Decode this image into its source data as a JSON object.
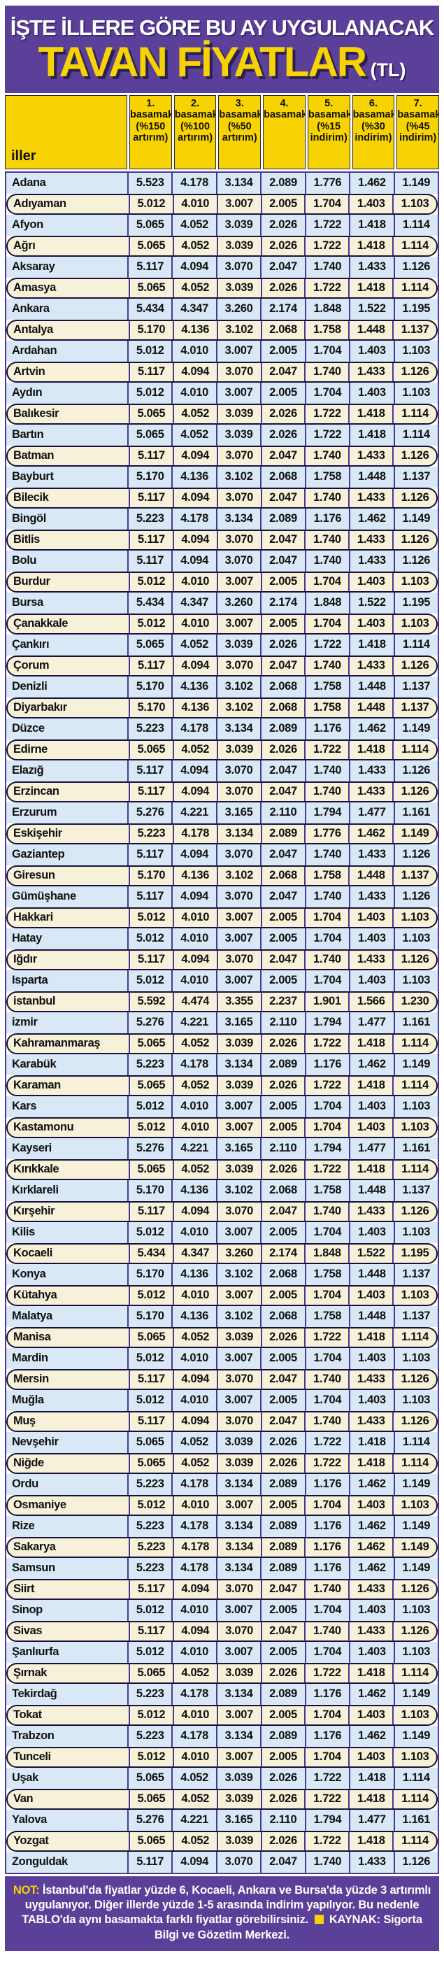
{
  "header": {
    "kicker": "İŞTE İLLERE GÖRE BU AY UYGULANACAK",
    "title": "TAVAN FİYATLAR",
    "title_suffix": "(TL)"
  },
  "colors": {
    "panel_purple": "#5a4098",
    "header_yellow": "#f8d303",
    "row_blue": "#d9e8f6",
    "row_cream": "#f6f1d8",
    "grid_line_purple": "#4b3794",
    "pill_outline": "#18123a",
    "title_yellow": "#f8d303",
    "text_black": "#111111",
    "text_white": "#ffffff"
  },
  "footnote": {
    "label": "NOT:",
    "text": "İstanbul'da fiyatlar yüzde 6, Kocaeli, Ankara ve Bursa'da yüzde 3 artırımlı uygulanıyor. Diğer illerde yüzde 1-5 arasında indirim yapılıyor. Bu nedenle TABLO'da aynı basamakta farklı fiyatlar görebilirsiniz.",
    "source": "KAYNAK: Sigorta Bilgi ve Gözetim Merkezi."
  },
  "chart_data": {
    "type": "table",
    "title": "İŞTE İLLERE GÖRE BU AY UYGULANACAK TAVAN FİYATLAR (TL)",
    "row_header": "iller",
    "columns": [
      {
        "label": "1.\nbasamak\n(%150\nartırım)"
      },
      {
        "label": "2.\nbasamak\n(%100\nartırım)"
      },
      {
        "label": "3.\nbasamak\n(%50\nartırım)"
      },
      {
        "label": "4.\nbasamak"
      },
      {
        "label": "5.\nbasamak\n(%15\nindirim)"
      },
      {
        "label": "6.\nbasamak\n(%30\nindirim)"
      },
      {
        "label": "7.\nbasamak\n(%45\nindirim)"
      }
    ],
    "rows": [
      {
        "il": "Adana",
        "values": [
          "5.523",
          "4.178",
          "3.134",
          "2.089",
          "1.776",
          "1.462",
          "1.149"
        ]
      },
      {
        "il": "Adıyaman",
        "values": [
          "5.012",
          "4.010",
          "3.007",
          "2.005",
          "1.704",
          "1.403",
          "1.103"
        ]
      },
      {
        "il": "Afyon",
        "values": [
          "5.065",
          "4.052",
          "3.039",
          "2.026",
          "1.722",
          "1.418",
          "1.114"
        ]
      },
      {
        "il": "Ağrı",
        "values": [
          "5.065",
          "4.052",
          "3.039",
          "2.026",
          "1.722",
          "1.418",
          "1.114"
        ]
      },
      {
        "il": "Aksaray",
        "values": [
          "5.117",
          "4.094",
          "3.070",
          "2.047",
          "1.740",
          "1.433",
          "1.126"
        ]
      },
      {
        "il": "Amasya",
        "values": [
          "5.065",
          "4.052",
          "3.039",
          "2.026",
          "1.722",
          "1.418",
          "1.114"
        ]
      },
      {
        "il": "Ankara",
        "values": [
          "5.434",
          "4.347",
          "3.260",
          "2.174",
          "1.848",
          "1.522",
          "1.195"
        ]
      },
      {
        "il": "Antalya",
        "values": [
          "5.170",
          "4.136",
          "3.102",
          "2.068",
          "1.758",
          "1.448",
          "1.137"
        ]
      },
      {
        "il": "Ardahan",
        "values": [
          "5.012",
          "4.010",
          "3.007",
          "2.005",
          "1.704",
          "1.403",
          "1.103"
        ]
      },
      {
        "il": "Artvin",
        "values": [
          "5.117",
          "4.094",
          "3.070",
          "2.047",
          "1.740",
          "1.433",
          "1.126"
        ]
      },
      {
        "il": "Aydın",
        "values": [
          "5.012",
          "4.010",
          "3.007",
          "2.005",
          "1.704",
          "1.403",
          "1.103"
        ]
      },
      {
        "il": "Balıkesir",
        "values": [
          "5.065",
          "4.052",
          "3.039",
          "2.026",
          "1.722",
          "1.418",
          "1.114"
        ]
      },
      {
        "il": "Bartın",
        "values": [
          "5.065",
          "4.052",
          "3.039",
          "2.026",
          "1.722",
          "1.418",
          "1.114"
        ]
      },
      {
        "il": "Batman",
        "values": [
          "5.117",
          "4.094",
          "3.070",
          "2.047",
          "1.740",
          "1.433",
          "1.126"
        ]
      },
      {
        "il": "Bayburt",
        "values": [
          "5.170",
          "4.136",
          "3.102",
          "2.068",
          "1.758",
          "1.448",
          "1.137"
        ]
      },
      {
        "il": "Bilecik",
        "values": [
          "5.117",
          "4.094",
          "3.070",
          "2.047",
          "1.740",
          "1.433",
          "1.126"
        ]
      },
      {
        "il": "Bingöl",
        "values": [
          "5.223",
          "4.178",
          "3.134",
          "2.089",
          "1.176",
          "1.462",
          "1.149"
        ]
      },
      {
        "il": "Bitlis",
        "values": [
          "5.117",
          "4.094",
          "3.070",
          "2.047",
          "1.740",
          "1.433",
          "1.126"
        ]
      },
      {
        "il": "Bolu",
        "values": [
          "5.117",
          "4.094",
          "3.070",
          "2.047",
          "1.740",
          "1.433",
          "1.126"
        ]
      },
      {
        "il": "Burdur",
        "values": [
          "5.012",
          "4.010",
          "3.007",
          "2.005",
          "1.704",
          "1.403",
          "1.103"
        ]
      },
      {
        "il": "Bursa",
        "values": [
          "5.434",
          "4.347",
          "3.260",
          "2.174",
          "1.848",
          "1.522",
          "1.195"
        ]
      },
      {
        "il": "Çanakkale",
        "values": [
          "5.012",
          "4.010",
          "3.007",
          "2.005",
          "1.704",
          "1.403",
          "1.103"
        ]
      },
      {
        "il": "Çankırı",
        "values": [
          "5.065",
          "4.052",
          "3.039",
          "2.026",
          "1.722",
          "1.418",
          "1.114"
        ]
      },
      {
        "il": "Çorum",
        "values": [
          "5.117",
          "4.094",
          "3.070",
          "2.047",
          "1.740",
          "1.433",
          "1.126"
        ]
      },
      {
        "il": "Denizli",
        "values": [
          "5.170",
          "4.136",
          "3.102",
          "2.068",
          "1.758",
          "1.448",
          "1.137"
        ]
      },
      {
        "il": "Diyarbakır",
        "values": [
          "5.170",
          "4.136",
          "3.102",
          "2.068",
          "1.758",
          "1.448",
          "1.137"
        ]
      },
      {
        "il": "Düzce",
        "values": [
          "5.223",
          "4.178",
          "3.134",
          "2.089",
          "1.176",
          "1.462",
          "1.149"
        ]
      },
      {
        "il": "Edirne",
        "values": [
          "5.065",
          "4.052",
          "3.039",
          "2.026",
          "1.722",
          "1.418",
          "1.114"
        ]
      },
      {
        "il": "Elazığ",
        "values": [
          "5.117",
          "4.094",
          "3.070",
          "2.047",
          "1.740",
          "1.433",
          "1.126"
        ]
      },
      {
        "il": "Erzincan",
        "values": [
          "5.117",
          "4.094",
          "3.070",
          "2.047",
          "1.740",
          "1.433",
          "1.126"
        ]
      },
      {
        "il": "Erzurum",
        "values": [
          "5.276",
          "4.221",
          "3.165",
          "2.110",
          "1.794",
          "1.477",
          "1.161"
        ]
      },
      {
        "il": "Eskişehir",
        "values": [
          "5.223",
          "4.178",
          "3.134",
          "2.089",
          "1.776",
          "1.462",
          "1.149"
        ]
      },
      {
        "il": "Gaziantep",
        "values": [
          "5.117",
          "4.094",
          "3.070",
          "2.047",
          "1.740",
          "1.433",
          "1.126"
        ]
      },
      {
        "il": "Giresun",
        "values": [
          "5.170",
          "4.136",
          "3.102",
          "2.068",
          "1.758",
          "1.448",
          "1.137"
        ]
      },
      {
        "il": "Gümüşhane",
        "values": [
          "5.117",
          "4.094",
          "3.070",
          "2.047",
          "1.740",
          "1.433",
          "1.126"
        ]
      },
      {
        "il": "Hakkari",
        "values": [
          "5.012",
          "4.010",
          "3.007",
          "2.005",
          "1.704",
          "1.403",
          "1.103"
        ]
      },
      {
        "il": "Hatay",
        "values": [
          "5.012",
          "4.010",
          "3.007",
          "2.005",
          "1.704",
          "1.403",
          "1.103"
        ]
      },
      {
        "il": "Iğdır",
        "values": [
          "5.117",
          "4.094",
          "3.070",
          "2.047",
          "1.740",
          "1.433",
          "1.126"
        ]
      },
      {
        "il": "Isparta",
        "values": [
          "5.012",
          "4.010",
          "3.007",
          "2.005",
          "1.704",
          "1.403",
          "1.103"
        ]
      },
      {
        "il": "istanbul",
        "values": [
          "5.592",
          "4.474",
          "3.355",
          "2.237",
          "1.901",
          "1.566",
          "1.230"
        ]
      },
      {
        "il": "izmir",
        "values": [
          "5.276",
          "4.221",
          "3.165",
          "2.110",
          "1.794",
          "1.477",
          "1.161"
        ]
      },
      {
        "il": "Kahramanmaraş",
        "values": [
          "5.065",
          "4.052",
          "3.039",
          "2.026",
          "1.722",
          "1.418",
          "1.114"
        ]
      },
      {
        "il": "Karabük",
        "values": [
          "5.223",
          "4.178",
          "3.134",
          "2.089",
          "1.176",
          "1.462",
          "1.149"
        ]
      },
      {
        "il": "Karaman",
        "values": [
          "5.065",
          "4.052",
          "3.039",
          "2.026",
          "1.722",
          "1.418",
          "1.114"
        ]
      },
      {
        "il": "Kars",
        "values": [
          "5.012",
          "4.010",
          "3.007",
          "2.005",
          "1.704",
          "1.403",
          "1.103"
        ]
      },
      {
        "il": "Kastamonu",
        "values": [
          "5.012",
          "4.010",
          "3.007",
          "2.005",
          "1.704",
          "1.403",
          "1.103"
        ]
      },
      {
        "il": "Kayseri",
        "values": [
          "5.276",
          "4.221",
          "3.165",
          "2.110",
          "1.794",
          "1.477",
          "1.161"
        ]
      },
      {
        "il": "Kırıkkale",
        "values": [
          "5.065",
          "4.052",
          "3.039",
          "2.026",
          "1.722",
          "1.418",
          "1.114"
        ]
      },
      {
        "il": "Kırklareli",
        "values": [
          "5.170",
          "4.136",
          "3.102",
          "2.068",
          "1.758",
          "1.448",
          "1.137"
        ]
      },
      {
        "il": "Kırşehir",
        "values": [
          "5.117",
          "4.094",
          "3.070",
          "2.047",
          "1.740",
          "1.433",
          "1.126"
        ]
      },
      {
        "il": "Kilis",
        "values": [
          "5.012",
          "4.010",
          "3.007",
          "2.005",
          "1.704",
          "1.403",
          "1.103"
        ]
      },
      {
        "il": "Kocaeli",
        "values": [
          "5.434",
          "4.347",
          "3.260",
          "2.174",
          "1.848",
          "1.522",
          "1.195"
        ]
      },
      {
        "il": "Konya",
        "values": [
          "5.170",
          "4.136",
          "3.102",
          "2.068",
          "1.758",
          "1.448",
          "1.137"
        ]
      },
      {
        "il": "Kütahya",
        "values": [
          "5.012",
          "4.010",
          "3.007",
          "2.005",
          "1.704",
          "1.403",
          "1.103"
        ]
      },
      {
        "il": "Malatya",
        "values": [
          "5.170",
          "4.136",
          "3.102",
          "2.068",
          "1.758",
          "1.448",
          "1.137"
        ]
      },
      {
        "il": "Manisa",
        "values": [
          "5.065",
          "4.052",
          "3.039",
          "2.026",
          "1.722",
          "1.418",
          "1.114"
        ]
      },
      {
        "il": "Mardin",
        "values": [
          "5.012",
          "4.010",
          "3.007",
          "2.005",
          "1.704",
          "1.403",
          "1.103"
        ]
      },
      {
        "il": "Mersin",
        "values": [
          "5.117",
          "4.094",
          "3.070",
          "2.047",
          "1.740",
          "1.433",
          "1.126"
        ]
      },
      {
        "il": "Muğla",
        "values": [
          "5.012",
          "4.010",
          "3.007",
          "2.005",
          "1.704",
          "1.403",
          "1.103"
        ]
      },
      {
        "il": "Muş",
        "values": [
          "5.117",
          "4.094",
          "3.070",
          "2.047",
          "1.740",
          "1.433",
          "1.126"
        ]
      },
      {
        "il": "Nevşehir",
        "values": [
          "5.065",
          "4.052",
          "3.039",
          "2.026",
          "1.722",
          "1.418",
          "1.114"
        ]
      },
      {
        "il": "Niğde",
        "values": [
          "5.065",
          "4.052",
          "3.039",
          "2.026",
          "1.722",
          "1.418",
          "1.114"
        ]
      },
      {
        "il": "Ordu",
        "values": [
          "5.223",
          "4.178",
          "3.134",
          "2.089",
          "1.176",
          "1.462",
          "1.149"
        ]
      },
      {
        "il": "Osmaniye",
        "values": [
          "5.012",
          "4.010",
          "3.007",
          "2.005",
          "1.704",
          "1.403",
          "1.103"
        ]
      },
      {
        "il": "Rize",
        "values": [
          "5.223",
          "4.178",
          "3.134",
          "2.089",
          "1.176",
          "1.462",
          "1.149"
        ]
      },
      {
        "il": "Sakarya",
        "values": [
          "5.223",
          "4.178",
          "3.134",
          "2.089",
          "1.176",
          "1.462",
          "1.149"
        ]
      },
      {
        "il": "Samsun",
        "values": [
          "5.223",
          "4.178",
          "3.134",
          "2.089",
          "1.176",
          "1.462",
          "1.149"
        ]
      },
      {
        "il": "Siirt",
        "values": [
          "5.117",
          "4.094",
          "3.070",
          "2.047",
          "1.740",
          "1.433",
          "1.126"
        ]
      },
      {
        "il": "Sinop",
        "values": [
          "5.012",
          "4.010",
          "3.007",
          "2.005",
          "1.704",
          "1.403",
          "1.103"
        ]
      },
      {
        "il": "Sivas",
        "values": [
          "5.117",
          "4.094",
          "3.070",
          "2.047",
          "1.740",
          "1.433",
          "1.126"
        ]
      },
      {
        "il": "Şanlıurfa",
        "values": [
          "5.012",
          "4.010",
          "3.007",
          "2.005",
          "1.704",
          "1.403",
          "1.103"
        ]
      },
      {
        "il": "Şırnak",
        "values": [
          "5.065",
          "4.052",
          "3.039",
          "2.026",
          "1.722",
          "1.418",
          "1.114"
        ]
      },
      {
        "il": "Tekirdağ",
        "values": [
          "5.223",
          "4.178",
          "3.134",
          "2.089",
          "1.176",
          "1.462",
          "1.149"
        ]
      },
      {
        "il": "Tokat",
        "values": [
          "5.012",
          "4.010",
          "3.007",
          "2.005",
          "1.704",
          "1.403",
          "1.103"
        ]
      },
      {
        "il": "Trabzon",
        "values": [
          "5.223",
          "4.178",
          "3.134",
          "2.089",
          "1.176",
          "1.462",
          "1.149"
        ]
      },
      {
        "il": "Tunceli",
        "values": [
          "5.012",
          "4.010",
          "3.007",
          "2.005",
          "1.704",
          "1.403",
          "1.103"
        ]
      },
      {
        "il": "Uşak",
        "values": [
          "5.065",
          "4.052",
          "3.039",
          "2.026",
          "1.722",
          "1.418",
          "1.114"
        ]
      },
      {
        "il": "Van",
        "values": [
          "5.065",
          "4.052",
          "3.039",
          "2.026",
          "1.722",
          "1.418",
          "1.114"
        ]
      },
      {
        "il": "Yalova",
        "values": [
          "5.276",
          "4.221",
          "3.165",
          "2.110",
          "1.794",
          "1.477",
          "1.161"
        ]
      },
      {
        "il": "Yozgat",
        "values": [
          "5.065",
          "4.052",
          "3.039",
          "2.026",
          "1.722",
          "1.418",
          "1.114"
        ]
      },
      {
        "il": "Zonguldak",
        "values": [
          "5.117",
          "4.094",
          "3.070",
          "2.047",
          "1.740",
          "1.433",
          "1.126"
        ]
      }
    ]
  }
}
